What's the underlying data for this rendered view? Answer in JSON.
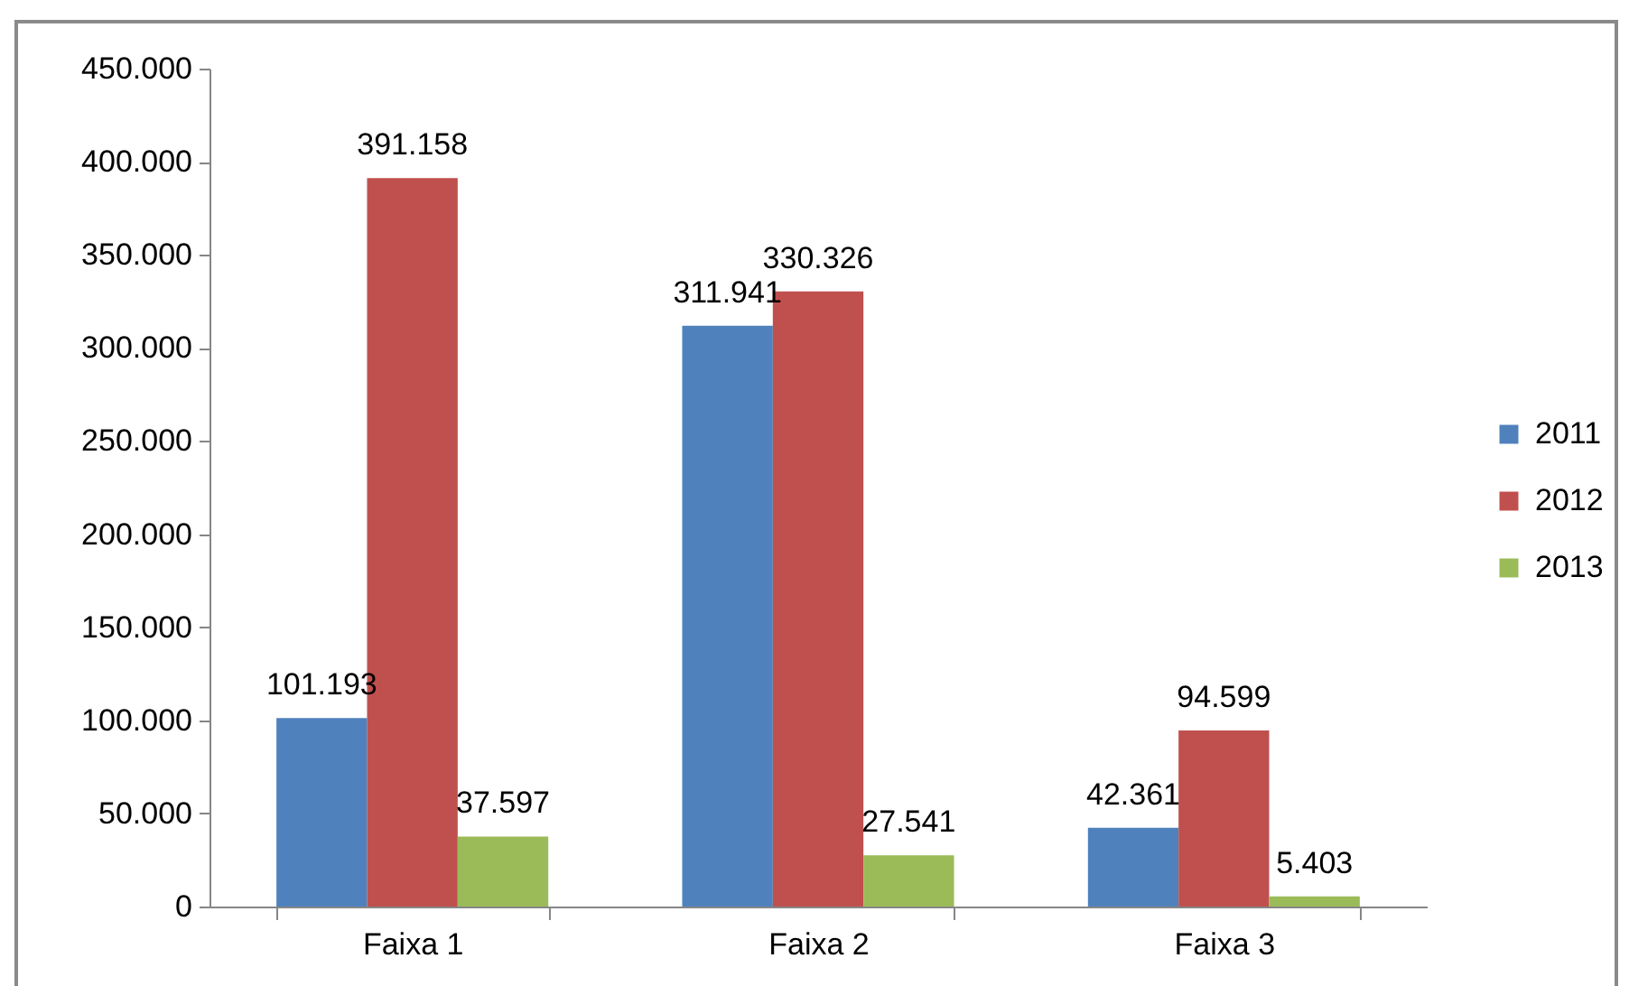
{
  "chart_data": {
    "type": "bar",
    "categories": [
      "Faixa 1",
      "Faixa 2",
      "Faixa 3"
    ],
    "series": [
      {
        "name": "2011",
        "color": "#4f81bd",
        "values": [
          101193,
          311941,
          42361
        ],
        "value_labels": [
          "101.193",
          "311.941",
          "42.361"
        ]
      },
      {
        "name": "2012",
        "color": "#c0504d",
        "values": [
          391158,
          330326,
          94599
        ],
        "value_labels": [
          "391.158",
          "330.326",
          "94.599"
        ]
      },
      {
        "name": "2013",
        "color": "#9bbb59",
        "values": [
          37597,
          27541,
          5403
        ],
        "value_labels": [
          "37.597",
          "27.541",
          "5.403"
        ]
      }
    ],
    "ylim": [
      0,
      450000
    ],
    "yticks": [
      0,
      {
        "value": 50000,
        "label": "50.000"
      },
      {
        "value": 100000,
        "label": "100.000"
      },
      {
        "value": 150000,
        "label": "150.000"
      },
      {
        "value": 200000,
        "label": "200.000"
      },
      {
        "value": 250000,
        "label": "250.000"
      },
      {
        "value": 300000,
        "label": "300.000"
      },
      {
        "value": 350000,
        "label": "350.000"
      },
      {
        "value": 400000,
        "label": "400.000"
      },
      {
        "value": 450000,
        "label": "450.000"
      }
    ],
    "legend": "right"
  }
}
